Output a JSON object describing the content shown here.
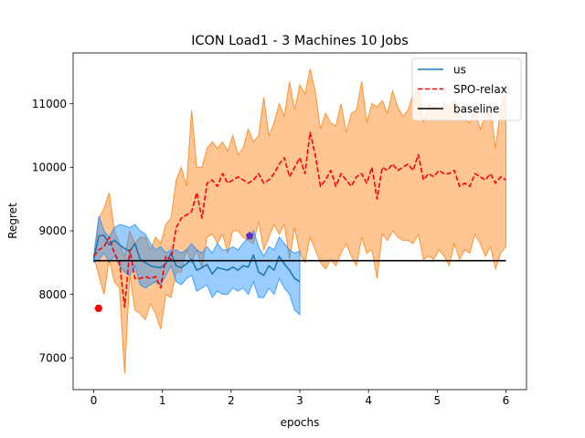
{
  "chart_data": {
    "type": "line",
    "title": "ICON Load1 - 3 Machines 10 Jobs",
    "xlabel": "epochs",
    "ylabel": "Regret",
    "xlim": [
      -0.3,
      6.3
    ],
    "ylim": [
      6500,
      11800
    ],
    "xticks": [
      0,
      1,
      2,
      3,
      4,
      5,
      6
    ],
    "yticks": [
      7000,
      8000,
      9000,
      10000,
      11000
    ],
    "grid": false,
    "legend": "top-right",
    "series": [
      {
        "name": "us",
        "style": "solid",
        "color": "#1f77b4",
        "band_color": "#1e90ff",
        "x": [
          0,
          0.075,
          0.15,
          0.225,
          0.3,
          0.375,
          0.45,
          0.525,
          0.6,
          0.675,
          0.75,
          0.825,
          0.9,
          0.975,
          1.05,
          1.125,
          1.2,
          1.275,
          1.35,
          1.425,
          1.5,
          1.575,
          1.65,
          1.725,
          1.8,
          1.875,
          1.95,
          2.025,
          2.1,
          2.175,
          2.25,
          2.325,
          2.4,
          2.475,
          2.55,
          2.625,
          2.7,
          2.775,
          2.85,
          2.925,
          3.0
        ],
        "values": [
          8550,
          8920,
          8930,
          8780,
          8850,
          8780,
          8720,
          8680,
          8800,
          8550,
          8500,
          8450,
          8430,
          8420,
          8480,
          8650,
          8450,
          8420,
          8480,
          8550,
          8380,
          8420,
          8470,
          8320,
          8420,
          8400,
          8380,
          8430,
          8380,
          8450,
          8430,
          8620,
          8350,
          8300,
          8450,
          8380,
          8600,
          8480,
          8380,
          8250,
          8200
        ],
        "upper": [
          8600,
          9230,
          9000,
          8900,
          9050,
          9100,
          9080,
          9050,
          9100,
          9000,
          8950,
          8800,
          8700,
          8750,
          8650,
          8700,
          8700,
          8650,
          8700,
          8800,
          8700,
          8650,
          8750,
          8650,
          8800,
          8700,
          8700,
          8750,
          8700,
          8800,
          8900,
          9000,
          8750,
          8600,
          8750,
          8700,
          8900,
          8800,
          8700,
          8650,
          8680
        ],
        "lower": [
          8500,
          8550,
          8650,
          8500,
          8600,
          8450,
          8350,
          8300,
          8450,
          8150,
          8100,
          8150,
          8200,
          8150,
          8300,
          8450,
          8200,
          8150,
          8250,
          8300,
          8050,
          8100,
          8150,
          7950,
          8050,
          8000,
          8000,
          8100,
          8050,
          8100,
          8000,
          8200,
          7950,
          7950,
          8100,
          8000,
          8250,
          8100,
          8000,
          7750,
          7680
        ]
      },
      {
        "name": "SPO-relax",
        "style": "dashed",
        "color": "#ff0000",
        "band_color": "#ff7f0e",
        "x": [
          0,
          0.075,
          0.15,
          0.225,
          0.3,
          0.375,
          0.45,
          0.525,
          0.6,
          0.675,
          0.75,
          0.825,
          0.9,
          0.975,
          1.05,
          1.125,
          1.2,
          1.275,
          1.35,
          1.425,
          1.5,
          1.575,
          1.65,
          1.725,
          1.8,
          1.875,
          1.95,
          2.025,
          2.1,
          2.175,
          2.25,
          2.325,
          2.4,
          2.475,
          2.55,
          2.625,
          2.7,
          2.775,
          2.85,
          2.925,
          3.0,
          3.075,
          3.15,
          3.225,
          3.3,
          3.375,
          3.45,
          3.525,
          3.6,
          3.675,
          3.75,
          3.825,
          3.9,
          3.975,
          4.05,
          4.125,
          4.2,
          4.275,
          4.35,
          4.425,
          4.5,
          4.575,
          4.65,
          4.725,
          4.8,
          4.875,
          4.95,
          5.025,
          5.1,
          5.175,
          5.25,
          5.325,
          5.4,
          5.475,
          5.55,
          5.625,
          5.7,
          5.775,
          5.85,
          5.925,
          6.0
        ],
        "values": [
          8600,
          8700,
          8750,
          8900,
          8650,
          8500,
          7800,
          8700,
          8250,
          8250,
          8280,
          8250,
          8280,
          8100,
          8600,
          8550,
          9050,
          9200,
          9250,
          9300,
          9600,
          9200,
          9750,
          9800,
          9700,
          9900,
          9750,
          9800,
          9850,
          9800,
          9750,
          9800,
          9900,
          9750,
          9800,
          9900,
          10050,
          10150,
          9850,
          10000,
          10150,
          9900,
          10550,
          10200,
          9700,
          9800,
          9950,
          9700,
          9900,
          9800,
          9700,
          9850,
          9900,
          9750,
          10000,
          9500,
          10000,
          9950,
          10050,
          9950,
          10000,
          10050,
          9950,
          10200,
          9800,
          9900,
          9850,
          9950,
          9900,
          9900,
          9950,
          9700,
          9750,
          9700,
          9900,
          9850,
          9800,
          9900,
          9750,
          9850,
          9800
        ],
        "upper": [
          8600,
          9200,
          9350,
          9600,
          9000,
          8800,
          8600,
          9000,
          8800,
          8900,
          8900,
          8700,
          8900,
          8800,
          9100,
          9200,
          9800,
          10000,
          9700,
          10900,
          10000,
          10000,
          10300,
          10400,
          10300,
          10400,
          10250,
          10500,
          10200,
          10300,
          10600,
          10400,
          10500,
          11100,
          10500,
          10700,
          11000,
          10800,
          11350,
          10900,
          11300,
          11150,
          11550,
          11200,
          10600,
          10850,
          10700,
          10650,
          11000,
          10550,
          10850,
          10900,
          11350,
          10700,
          11000,
          10950,
          11050,
          10850,
          11200,
          10950,
          10800,
          10900,
          11150,
          11250,
          10700,
          11000,
          10950,
          10850,
          11000,
          10950,
          11050,
          10800,
          10750,
          10700,
          10900,
          10600,
          10800,
          10950,
          10300,
          10950,
          11150
        ],
        "lower": [
          8600,
          8300,
          8000,
          8550,
          8200,
          8100,
          6750,
          8300,
          7750,
          7700,
          7600,
          7850,
          7700,
          7450,
          8000,
          7950,
          8350,
          8350,
          8700,
          8500,
          8700,
          8400,
          8900,
          8950,
          8800,
          8950,
          8650,
          9000,
          9000,
          8900,
          8850,
          8800,
          9150,
          8700,
          8900,
          9100,
          8950,
          9100,
          8550,
          9050,
          8650,
          8500,
          8900,
          8700,
          8500,
          8400,
          8550,
          8450,
          8650,
          8800,
          8600,
          8450,
          8900,
          8650,
          8700,
          8250,
          8950,
          8850,
          9000,
          8900,
          8850,
          8850,
          8800,
          8950,
          8550,
          8600,
          8550,
          8700,
          8600,
          8450,
          8800,
          8550,
          8700,
          8650,
          8950,
          8800,
          8600,
          8750,
          8400,
          8650,
          8750
        ]
      },
      {
        "name": "baseline",
        "style": "solid",
        "color": "#000000",
        "x": [
          0,
          6
        ],
        "values": [
          8530,
          8530
        ]
      }
    ],
    "markers": [
      {
        "x": 0.07,
        "y": 7780,
        "color": "#ff0000",
        "shape": "hexagon"
      },
      {
        "x": 2.27,
        "y": 8920,
        "color": "#5b2fc0",
        "shape": "pentagon"
      }
    ]
  }
}
